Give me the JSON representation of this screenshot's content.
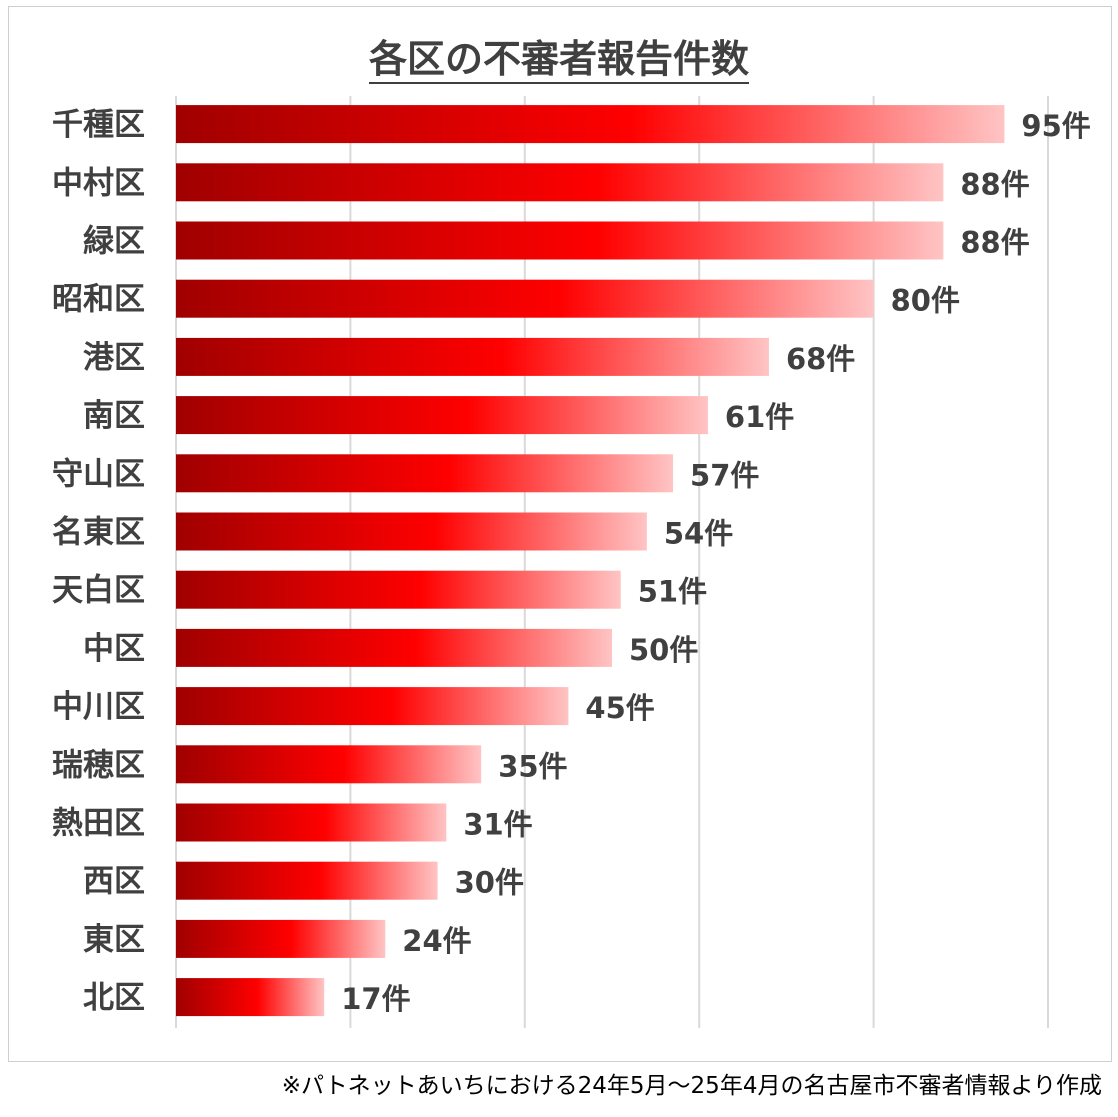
{
  "chart_data": {
    "type": "bar",
    "orientation": "horizontal",
    "title": "各区の不審者報告件数",
    "categories": [
      "千種区",
      "中村区",
      "緑区",
      "昭和区",
      "港区",
      "南区",
      "守山区",
      "名東区",
      "天白区",
      "中区",
      "中川区",
      "瑞穂区",
      "熱田区",
      "西区",
      "東区",
      "北区"
    ],
    "values": [
      95,
      88,
      88,
      80,
      68,
      61,
      57,
      54,
      51,
      50,
      45,
      35,
      31,
      30,
      24,
      17
    ],
    "value_suffix": "件",
    "xlim": [
      0,
      100
    ],
    "grid": true,
    "legend": "none",
    "colors": {
      "dark": "#a00000",
      "mid": "#ff0000",
      "light": "#ffc4c4",
      "grid": "#d9d9d9",
      "text": "#404040"
    }
  },
  "footnote": "※パトネットあいちにおける24年5月～25年4月の名古屋市不審者情報より作成"
}
